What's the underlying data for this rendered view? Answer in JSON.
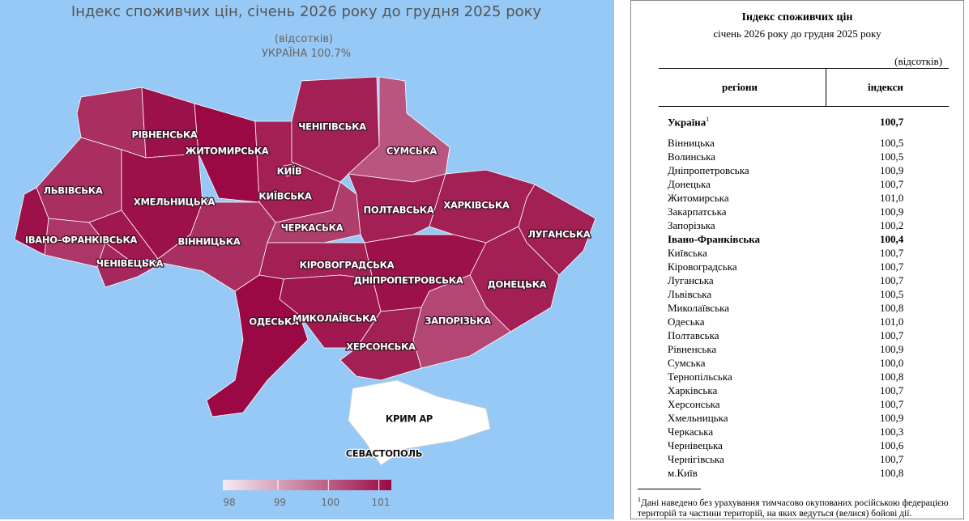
{
  "map": {
    "title": "Індекс споживчих цін, січень 2026 року до грудня 2025 року",
    "unit": "(відсотків)",
    "national": "УКРАЇНА 100.7%",
    "region_labels": [
      "РІВНЕНСЬКА",
      "ЖИТОМИРСЬКА",
      "ЧЕНІГІВСЬКА",
      "СУМСЬКА",
      "КИЇВ",
      "ЛЬВІВСЬКА",
      "ХМЕЛЬНИЦЬКА",
      "КИЇВСЬКА",
      "ХАРКІВСЬКА",
      "ПОЛТАВСЬКА",
      "ЧЕРКАСЬКА",
      "ЛУГАНСЬКА",
      "ІВАНО–ФРАНКІВСЬКА",
      "ВІННИЦЬКА",
      "ЧЕНІВЕЦЬКА",
      "КІРОВОГРАДСЬКА",
      "ДНІПРОПЕТРОВСЬКА",
      "ДОНЕЦЬКА",
      "ОДЕСЬКА",
      "МИКОЛАЇВСЬКА",
      "ЗАПОРІЗЬКА",
      "ХЕРСОНСЬКА",
      "КРИМ АР",
      "СЕВАСТОПОЛЬ"
    ],
    "legend": {
      "ticks": [
        98,
        99,
        100,
        101
      ],
      "colors": [
        "#f6ecf1",
        "#9a0944"
      ]
    }
  },
  "table": {
    "title": "Індекс споживчих цін",
    "subtitle": "січень 2026 року до грудня 2025 року",
    "unit": "(відсотків)",
    "headers": [
      "регіони",
      "індекси"
    ],
    "rows": [
      {
        "region": "Україна",
        "note": "1",
        "index": "100,7",
        "bold": true
      },
      {
        "region": "Вінницька",
        "index": "100,5"
      },
      {
        "region": "Волинська",
        "index": "100,5"
      },
      {
        "region": "Дніпропетровська",
        "index": "100,9"
      },
      {
        "region": "Донецька",
        "index": "100,7"
      },
      {
        "region": "Житомирська",
        "index": "101,0"
      },
      {
        "region": "Закарпатська",
        "index": "100,9"
      },
      {
        "region": "Запорізька",
        "index": "100,2"
      },
      {
        "region": "Івано-Франківська",
        "index": "100,4",
        "bold": true
      },
      {
        "region": "Київська",
        "index": "100,7"
      },
      {
        "region": "Кіровоградська",
        "index": "100,7"
      },
      {
        "region": "Луганська",
        "index": "100,7"
      },
      {
        "region": "Львівська",
        "index": "100,5"
      },
      {
        "region": "Миколаївська",
        "index": "100,8"
      },
      {
        "region": "Одеська",
        "index": "101,0"
      },
      {
        "region": "Полтавська",
        "index": "100,7"
      },
      {
        "region": "Рівненська",
        "index": "100,9"
      },
      {
        "region": "Сумська",
        "index": "100,0"
      },
      {
        "region": "Тернопільська",
        "index": "100,8"
      },
      {
        "region": "Харківська",
        "index": "100,7"
      },
      {
        "region": "Херсонська",
        "index": "100,7"
      },
      {
        "region": "Хмельницька",
        "index": "100,9"
      },
      {
        "region": "Черкаська",
        "index": "100,3"
      },
      {
        "region": "Чернівецька",
        "index": "100,6"
      },
      {
        "region": "Чернігівська",
        "index": "100,7"
      },
      {
        "region": "м.Київ",
        "index": "100,8"
      }
    ],
    "footnote": {
      "mark": "1",
      "text": "Дані наведено без урахування тимчасово окупованих російською федерацією територій та частини територій, на яких ведуться (велися) бойові дії."
    }
  }
}
